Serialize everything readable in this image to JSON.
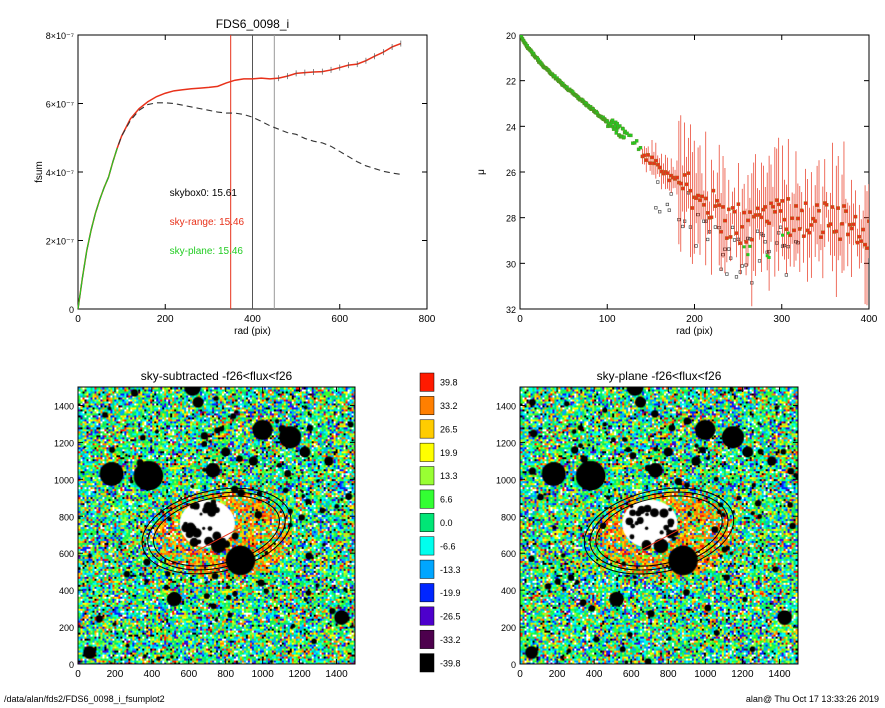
{
  "footer": {
    "path": "/data/alan/fds2/FDS6_0098_i_fsumplot2",
    "stamp": "alan@  Thu Oct 17 13:33:26 2019"
  },
  "chart_data": [
    {
      "id": "fsum",
      "type": "line",
      "title": "FDS6_0098_i",
      "xlabel": "rad (pix)",
      "ylabel": "fsum",
      "xlim": [
        0,
        800
      ],
      "ylim": [
        0,
        8e-07
      ],
      "x_ticks": [
        0,
        200,
        400,
        600,
        800
      ],
      "y_ticks": [
        {
          "value": 0,
          "label": "0"
        },
        {
          "value": 2e-07,
          "label": "2×10⁻⁷"
        },
        {
          "value": 4e-07,
          "label": "4×10⁻⁷"
        },
        {
          "value": 6e-07,
          "label": "6×10⁻⁷"
        },
        {
          "value": 8e-07,
          "label": "8×10⁻⁷"
        }
      ],
      "vlines": [
        {
          "x": 350,
          "color": "#e8311a"
        },
        {
          "x": 400,
          "color": "#555555"
        },
        {
          "x": 450,
          "color": "#999999"
        }
      ],
      "annotations": [
        {
          "text": "skybox0: 15.61",
          "color": "#000000",
          "x": 210,
          "y": 3.3e-07
        },
        {
          "text": "sky-range: 15.46",
          "color": "#e8311a",
          "x": 210,
          "y": 2.45e-07
        },
        {
          "text": "sky-plane: 15.46",
          "color": "#22cc22",
          "x": 210,
          "y": 1.6e-07
        }
      ],
      "series": [
        {
          "style": "sky-range",
          "color": "#e8311a",
          "x": [
            0,
            10,
            20,
            30,
            40,
            50,
            60,
            70,
            80,
            90,
            100,
            120,
            140,
            160,
            180,
            200,
            220,
            240,
            260,
            280,
            300,
            320,
            340,
            360,
            380,
            400,
            420,
            440,
            460,
            480,
            500,
            520,
            540,
            560,
            580,
            600,
            620,
            640,
            660,
            680,
            700,
            720,
            740
          ],
          "y": [
            0,
            9e-08,
            1.7e-07,
            2.3e-07,
            2.8e-07,
            3.2e-07,
            3.55e-07,
            3.85e-07,
            4.3e-07,
            4.7e-07,
            5.05e-07,
            5.55e-07,
            5.85e-07,
            6.05e-07,
            6.2e-07,
            6.3e-07,
            6.37e-07,
            6.4e-07,
            6.43e-07,
            6.45e-07,
            6.47e-07,
            6.5e-07,
            6.6e-07,
            6.68e-07,
            6.72e-07,
            6.72e-07,
            6.74e-07,
            6.72e-07,
            6.74e-07,
            6.8e-07,
            6.88e-07,
            6.9e-07,
            6.92e-07,
            6.93e-07,
            6.98e-07,
            7.05e-07,
            7.12e-07,
            7.15e-07,
            7.25e-07,
            7.38e-07,
            7.5e-07,
            7.65e-07,
            7.75e-07
          ]
        },
        {
          "style": "skybox0",
          "color": "#333333",
          "dashed": true,
          "x": [
            0,
            10,
            20,
            30,
            40,
            50,
            60,
            70,
            80,
            90,
            100,
            120,
            140,
            160,
            180,
            200,
            220,
            240,
            260,
            280,
            300,
            320,
            340,
            360,
            380,
            400,
            420,
            440,
            460,
            480,
            500,
            520,
            540,
            560,
            580,
            600,
            620,
            640,
            660,
            680,
            700,
            720,
            740
          ],
          "y": [
            0,
            9e-08,
            1.7e-07,
            2.3e-07,
            2.8e-07,
            3.2e-07,
            3.55e-07,
            3.85e-07,
            4.3e-07,
            4.7e-07,
            5.05e-07,
            5.5e-07,
            5.8e-07,
            5.97e-07,
            6.02e-07,
            6.02e-07,
            6e-07,
            5.95e-07,
            5.9e-07,
            5.85e-07,
            5.8e-07,
            5.75e-07,
            5.72e-07,
            5.72e-07,
            5.68e-07,
            5.6e-07,
            5.48e-07,
            5.35e-07,
            5.25e-07,
            5.15e-07,
            5.1e-07,
            4.98e-07,
            4.9e-07,
            4.85e-07,
            4.75e-07,
            4.6e-07,
            4.45e-07,
            4.3e-07,
            4.18e-07,
            4.1e-07,
            4.02e-07,
            3.97e-07,
            3.93e-07
          ]
        },
        {
          "style": "sky-plane",
          "color": "#22cc22",
          "x": [
            0,
            10,
            20,
            30,
            40,
            50,
            60,
            70,
            80,
            90
          ],
          "y": [
            0,
            9e-08,
            1.7e-07,
            2.3e-07,
            2.8e-07,
            3.2e-07,
            3.55e-07,
            3.85e-07,
            4.3e-07,
            4.7e-07
          ]
        }
      ]
    },
    {
      "id": "mu",
      "type": "scatter",
      "title": "",
      "xlabel": "rad (pix)",
      "ylabel": "μ",
      "xlim": [
        0,
        400
      ],
      "ylim": [
        32,
        20
      ],
      "x_ticks": [
        0,
        100,
        200,
        300,
        400
      ],
      "y_ticks": [
        20,
        22,
        24,
        26,
        28,
        30,
        32
      ],
      "profile": [
        [
          0,
          20.0
        ],
        [
          10,
          20.6
        ],
        [
          25,
          21.3
        ],
        [
          50,
          22.2
        ],
        [
          75,
          23.0
        ],
        [
          100,
          23.8
        ],
        [
          125,
          24.5
        ],
        [
          150,
          25.5
        ],
        [
          175,
          26.3
        ],
        [
          200,
          27.2
        ],
        [
          250,
          28.3
        ],
        [
          300,
          28.0
        ],
        [
          350,
          28.2
        ],
        [
          400,
          28.5
        ]
      ],
      "series": [
        {
          "name": "sky-range",
          "color": "#e8311a"
        },
        {
          "name": "skybox0",
          "color": "#333333"
        },
        {
          "name": "sky-plane",
          "color": "#22cc22"
        }
      ]
    },
    {
      "id": "img1",
      "type": "heatmap",
      "title": "sky-subtracted -f26<flux<f26",
      "xlim": [
        0,
        1500
      ],
      "ylim": [
        0,
        1500
      ],
      "x_ticks": [
        0,
        200,
        400,
        600,
        800,
        1000,
        1200,
        1400
      ],
      "y_ticks": [
        0,
        200,
        400,
        600,
        800,
        1000,
        1200,
        1400
      ]
    },
    {
      "id": "img2",
      "type": "heatmap",
      "title": "sky-plane -f26<flux<f26",
      "xlim": [
        0,
        1500
      ],
      "ylim": [
        0,
        1500
      ],
      "x_ticks": [
        0,
        200,
        400,
        600,
        800,
        1000,
        1200,
        1400
      ],
      "y_ticks": [
        0,
        200,
        400,
        600,
        800,
        1000,
        1200,
        1400
      ]
    },
    {
      "id": "colorbar",
      "type": "colorbar",
      "levels": [
        {
          "label": "39.8",
          "color": "#ff1a00"
        },
        {
          "label": "33.2",
          "color": "#ff7f00"
        },
        {
          "label": "26.5",
          "color": "#ffcc00"
        },
        {
          "label": "19.9",
          "color": "#ffff00"
        },
        {
          "label": "13.3",
          "color": "#99ff33"
        },
        {
          "label": "6.6",
          "color": "#33ff33"
        },
        {
          "label": "0.0",
          "color": "#00e676"
        },
        {
          "label": "-6.6",
          "color": "#00ffee"
        },
        {
          "label": "-13.3",
          "color": "#00a6ff"
        },
        {
          "label": "-19.9",
          "color": "#0026ff"
        },
        {
          "label": "-26.5",
          "color": "#4d00cc"
        },
        {
          "label": "-33.2",
          "color": "#4d004d"
        },
        {
          "label": "-39.8",
          "color": "#000000"
        }
      ]
    }
  ]
}
